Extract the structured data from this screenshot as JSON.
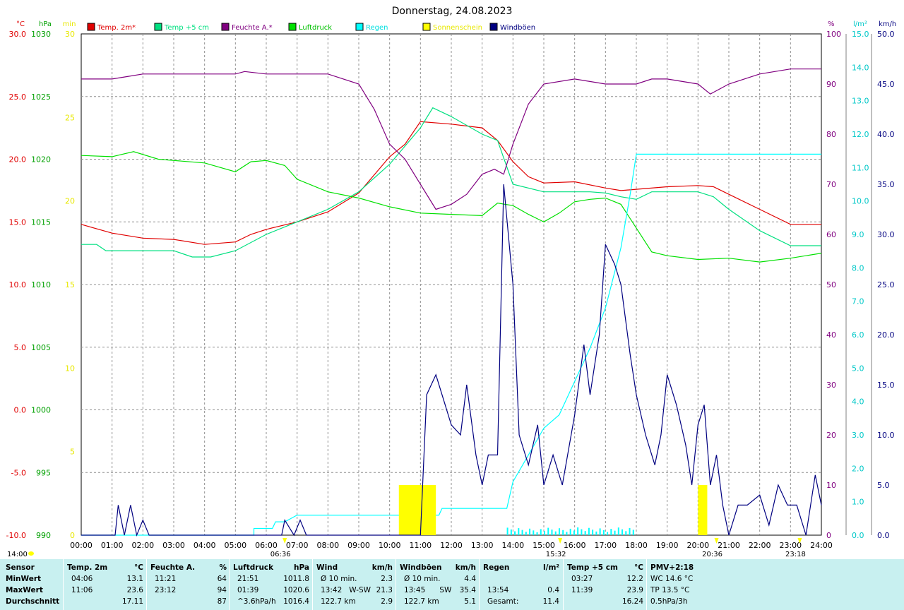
{
  "chart_data": {
    "type": "line",
    "title": "Donnerstag, 24.08.2023",
    "legend": [
      "Temp. 2m*",
      "Temp +5 cm",
      "Feuchte A.*",
      "Luftdruck",
      "Regen",
      "Sonnenschein",
      "Windböen"
    ],
    "legend_colors": [
      "#e00000",
      "#00e080",
      "#800080",
      "#00e000",
      "#00ffff",
      "#ffff00",
      "#000080"
    ],
    "axes": {
      "temp": {
        "unit": "°C",
        "range": [
          -10,
          30
        ],
        "ticks": [
          "30.0",
          "25.0",
          "20.0",
          "15.0",
          "10.0",
          "5.0",
          "0.0",
          "-5.0",
          "-10.0"
        ],
        "color": "#e00000"
      },
      "press": {
        "unit": "hPa",
        "range": [
          990,
          1030
        ],
        "ticks": [
          "1030",
          "1025",
          "1020",
          "1015",
          "1010",
          "1005",
          "1000",
          "995",
          "990"
        ],
        "color": "#00a000"
      },
      "min": {
        "unit": "min",
        "range": [
          0,
          30
        ],
        "ticks": [
          "30",
          "25",
          "20",
          "15",
          "10",
          "5",
          "0"
        ],
        "color": "#e8e800"
      },
      "hum": {
        "unit": "%",
        "range": [
          0,
          100
        ],
        "ticks": [
          "100",
          "90",
          "80",
          "70",
          "60",
          "50",
          "40",
          "30",
          "20",
          "10",
          "0"
        ],
        "color": "#800080"
      },
      "rain": {
        "unit": "l/m²",
        "range": [
          0,
          15
        ],
        "ticks": [
          "15.0",
          "14.0",
          "13.0",
          "12.0",
          "11.0",
          "10.0",
          "9.0",
          "8.0",
          "7.0",
          "6.0",
          "5.0",
          "4.0",
          "3.0",
          "2.0",
          "1.0",
          "0.0"
        ],
        "color": "#00c8c8"
      },
      "wind": {
        "unit": "km/h",
        "range": [
          0,
          50
        ],
        "ticks": [
          "50.0",
          "45.0",
          "40.0",
          "35.0",
          "30.0",
          "25.0",
          "20.0",
          "15.0",
          "10.0",
          "5.0",
          "0.0"
        ],
        "color": "#000080"
      }
    },
    "x_ticks": [
      "00:00",
      "01:00",
      "02:00",
      "03:00",
      "04:00",
      "05:00",
      "06:00",
      "07:00",
      "08:00",
      "09:00",
      "10:00",
      "11:00",
      "12:00",
      "13:00",
      "14:00",
      "15:00",
      "16:00",
      "17:00",
      "18:00",
      "19:00",
      "20:00",
      "21:00",
      "22:00",
      "23:00",
      "24:00"
    ],
    "markers": [
      {
        "time": "06:36",
        "hour": 6.6
      },
      {
        "time": "15:32",
        "hour": 15.53
      },
      {
        "time": "20:36",
        "hour": 20.6
      },
      {
        "time": "23:18",
        "hour": 23.3
      }
    ],
    "side_marker": "14:00",
    "series": [
      {
        "name": "Temp. 2m*",
        "axis": "temp",
        "points": [
          [
            0,
            14.8
          ],
          [
            1,
            14.1
          ],
          [
            2,
            13.7
          ],
          [
            3,
            13.6
          ],
          [
            4,
            13.2
          ],
          [
            5,
            13.4
          ],
          [
            5.5,
            14.0
          ],
          [
            6,
            14.4
          ],
          [
            7,
            15.0
          ],
          [
            8,
            15.8
          ],
          [
            9,
            17.3
          ],
          [
            10,
            20.2
          ],
          [
            10.5,
            21.2
          ],
          [
            11,
            23.0
          ],
          [
            12,
            22.8
          ],
          [
            13,
            22.5
          ],
          [
            13.5,
            21.5
          ],
          [
            14,
            19.8
          ],
          [
            14.5,
            18.6
          ],
          [
            15,
            18.1
          ],
          [
            16,
            18.2
          ],
          [
            17,
            17.7
          ],
          [
            17.5,
            17.5
          ],
          [
            18,
            17.6
          ],
          [
            19,
            17.8
          ],
          [
            20,
            17.9
          ],
          [
            20.5,
            17.8
          ],
          [
            21,
            17.2
          ],
          [
            22,
            16.0
          ],
          [
            23,
            14.8
          ],
          [
            24,
            14.8
          ]
        ]
      },
      {
        "name": "Temp +5 cm",
        "axis": "temp",
        "points": [
          [
            0,
            13.2
          ],
          [
            0.5,
            13.2
          ],
          [
            0.8,
            12.7
          ],
          [
            2,
            12.7
          ],
          [
            3,
            12.7
          ],
          [
            3.6,
            12.2
          ],
          [
            4.2,
            12.2
          ],
          [
            5,
            12.7
          ],
          [
            6,
            14.0
          ],
          [
            7,
            15.0
          ],
          [
            8,
            16.0
          ],
          [
            9,
            17.4
          ],
          [
            10,
            19.6
          ],
          [
            11,
            22.5
          ],
          [
            11.4,
            24.1
          ],
          [
            12,
            23.4
          ],
          [
            13,
            22.0
          ],
          [
            13.5,
            21.5
          ],
          [
            14,
            18.0
          ],
          [
            15,
            17.4
          ],
          [
            16,
            17.4
          ],
          [
            16.5,
            17.4
          ],
          [
            17,
            17.3
          ],
          [
            17.5,
            17.0
          ],
          [
            18,
            16.8
          ],
          [
            18.5,
            17.4
          ],
          [
            19,
            17.4
          ],
          [
            20,
            17.4
          ],
          [
            20.5,
            17.0
          ],
          [
            21,
            16.0
          ],
          [
            22,
            14.3
          ],
          [
            23,
            13.1
          ],
          [
            24,
            13.1
          ]
        ]
      },
      {
        "name": "Feuchte A.*",
        "axis": "hum",
        "points": [
          [
            0,
            91
          ],
          [
            1,
            91
          ],
          [
            1.5,
            91.5
          ],
          [
            2,
            92
          ],
          [
            3,
            92
          ],
          [
            4,
            92
          ],
          [
            5,
            92
          ],
          [
            5.3,
            92.5
          ],
          [
            6,
            92
          ],
          [
            7,
            92
          ],
          [
            8,
            92
          ],
          [
            9,
            90
          ],
          [
            9.5,
            85
          ],
          [
            10,
            78
          ],
          [
            10.5,
            75
          ],
          [
            11,
            70
          ],
          [
            11.5,
            65
          ],
          [
            12,
            66
          ],
          [
            12.5,
            68
          ],
          [
            13,
            72
          ],
          [
            13.4,
            73
          ],
          [
            13.7,
            72
          ],
          [
            14,
            78
          ],
          [
            14.5,
            86
          ],
          [
            15,
            90
          ],
          [
            16,
            91
          ],
          [
            17,
            90
          ],
          [
            18,
            90
          ],
          [
            18.5,
            91
          ],
          [
            19,
            91
          ],
          [
            20,
            90
          ],
          [
            20.4,
            88
          ],
          [
            21,
            90
          ],
          [
            22,
            92
          ],
          [
            23,
            93
          ],
          [
            24,
            93
          ]
        ]
      },
      {
        "name": "Luftdruck",
        "axis": "press",
        "points": [
          [
            0,
            1020.3
          ],
          [
            1,
            1020.2
          ],
          [
            1.7,
            1020.6
          ],
          [
            2.5,
            1020.0
          ],
          [
            3,
            1019.9
          ],
          [
            4,
            1019.7
          ],
          [
            5,
            1019.0
          ],
          [
            5.5,
            1019.8
          ],
          [
            6,
            1019.9
          ],
          [
            6.6,
            1019.5
          ],
          [
            7,
            1018.4
          ],
          [
            8,
            1017.4
          ],
          [
            9,
            1016.9
          ],
          [
            10,
            1016.2
          ],
          [
            11,
            1015.7
          ],
          [
            12,
            1015.6
          ],
          [
            13,
            1015.5
          ],
          [
            13.5,
            1016.5
          ],
          [
            14,
            1016.3
          ],
          [
            14.5,
            1015.6
          ],
          [
            15,
            1015.0
          ],
          [
            15.5,
            1015.7
          ],
          [
            16,
            1016.6
          ],
          [
            16.5,
            1016.8
          ],
          [
            17,
            1016.9
          ],
          [
            17.5,
            1016.4
          ],
          [
            18,
            1014.5
          ],
          [
            18.5,
            1012.6
          ],
          [
            19,
            1012.3
          ],
          [
            20,
            1012.0
          ],
          [
            21,
            1012.1
          ],
          [
            22,
            1011.8
          ],
          [
            23,
            1012.1
          ],
          [
            24,
            1012.5
          ]
        ]
      },
      {
        "name": "Regen",
        "axis": "rain",
        "points": [
          [
            0,
            0
          ],
          [
            5.6,
            0
          ],
          [
            5.6,
            0.2
          ],
          [
            6.2,
            0.2
          ],
          [
            6.3,
            0.4
          ],
          [
            6.6,
            0.4
          ],
          [
            7,
            0.6
          ],
          [
            11.6,
            0.6
          ],
          [
            11.7,
            0.8
          ],
          [
            13.8,
            0.8
          ],
          [
            14,
            1.6
          ],
          [
            14.5,
            2.4
          ],
          [
            15,
            3.2
          ],
          [
            15.5,
            3.6
          ],
          [
            16,
            4.6
          ],
          [
            16.5,
            5.6
          ],
          [
            17,
            6.8
          ],
          [
            17.5,
            8.6
          ],
          [
            17.8,
            10.2
          ],
          [
            18,
            11.4
          ],
          [
            24,
            11.4
          ]
        ]
      },
      {
        "name": "Sonnenschein",
        "axis": "min",
        "points": [
          [
            10.3,
            3
          ],
          [
            11.5,
            3
          ],
          [
            20.0,
            3
          ],
          [
            20.3,
            3
          ]
        ]
      },
      {
        "name": "Windböen",
        "axis": "wind",
        "points": [
          [
            0,
            0
          ],
          [
            1.1,
            0
          ],
          [
            1.2,
            3
          ],
          [
            1.4,
            0
          ],
          [
            1.6,
            3
          ],
          [
            1.8,
            0
          ],
          [
            2.0,
            1.5
          ],
          [
            2.2,
            0
          ],
          [
            5.0,
            0
          ],
          [
            6.5,
            0
          ],
          [
            6.6,
            1.5
          ],
          [
            6.9,
            0
          ],
          [
            7.1,
            1.5
          ],
          [
            7.3,
            0
          ],
          [
            11.0,
            0
          ],
          [
            11.2,
            14
          ],
          [
            11.5,
            16
          ],
          [
            11.8,
            13
          ],
          [
            12,
            11
          ],
          [
            12.3,
            10
          ],
          [
            12.5,
            15
          ],
          [
            12.8,
            8
          ],
          [
            13,
            5
          ],
          [
            13.2,
            8
          ],
          [
            13.5,
            8
          ],
          [
            13.7,
            35
          ],
          [
            14,
            25
          ],
          [
            14.2,
            10
          ],
          [
            14.5,
            7
          ],
          [
            14.8,
            11
          ],
          [
            15,
            5
          ],
          [
            15.3,
            8
          ],
          [
            15.6,
            5
          ],
          [
            16,
            12
          ],
          [
            16.3,
            19
          ],
          [
            16.5,
            14
          ],
          [
            16.8,
            20
          ],
          [
            17,
            29
          ],
          [
            17.3,
            27
          ],
          [
            17.5,
            25
          ],
          [
            17.8,
            18
          ],
          [
            18,
            14
          ],
          [
            18.3,
            10
          ],
          [
            18.6,
            7
          ],
          [
            18.8,
            10
          ],
          [
            19,
            16
          ],
          [
            19.3,
            13
          ],
          [
            19.6,
            9
          ],
          [
            19.8,
            5
          ],
          [
            20,
            11
          ],
          [
            20.2,
            13
          ],
          [
            20.4,
            5
          ],
          [
            20.6,
            8
          ],
          [
            20.8,
            3
          ],
          [
            21,
            0
          ],
          [
            21.3,
            3
          ],
          [
            21.6,
            3
          ],
          [
            22,
            4
          ],
          [
            22.3,
            1
          ],
          [
            22.6,
            5
          ],
          [
            22.9,
            3
          ],
          [
            23.2,
            3
          ],
          [
            23.5,
            0
          ],
          [
            23.8,
            6
          ],
          [
            24,
            3
          ]
        ]
      }
    ]
  },
  "stats": {
    "columns": [
      {
        "header": "Sensor",
        "unit": "",
        "rows": [
          "MinWert",
          "MaxWert",
          "Durchschnitt"
        ]
      },
      {
        "header": "Temp. 2m",
        "unit": "°C",
        "rows": [
          [
            "04:06",
            "13.1"
          ],
          [
            "11:06",
            "23.6"
          ],
          [
            "",
            "17.11"
          ]
        ]
      },
      {
        "header": "Feuchte A.",
        "unit": "%",
        "rows": [
          [
            "11:21",
            "64"
          ],
          [
            "23:12",
            "94"
          ],
          [
            "",
            "87"
          ]
        ]
      },
      {
        "header": "Luftdruck",
        "unit": "hPa",
        "rows": [
          [
            "21:51",
            "1011.8"
          ],
          [
            "01:39",
            "1020.6"
          ],
          [
            "^3.6hPa/h",
            "1016.4"
          ]
        ]
      },
      {
        "header": "Wind",
        "unit": "km/h",
        "rows": [
          [
            "Ø 10 min.",
            "2.3"
          ],
          [
            "13:42   W-SW",
            "21.3"
          ],
          [
            "122.7 km",
            "2.9"
          ]
        ]
      },
      {
        "header": "Windböen",
        "unit": "km/h",
        "rows": [
          [
            "Ø 10 min.",
            "4.4"
          ],
          [
            "13:45      SW",
            "35.4"
          ],
          [
            "122.7 km",
            "5.1"
          ]
        ]
      },
      {
        "header": "Regen",
        "unit": "l/m²",
        "rows": [
          [
            "",
            ""
          ],
          [
            "13:54",
            "0.4"
          ],
          [
            "Gesamt:",
            "11.4"
          ]
        ]
      },
      {
        "header": "Temp +5 cm",
        "unit": "°C",
        "rows": [
          [
            "03:27",
            "12.2"
          ],
          [
            "11:39",
            "23.9"
          ],
          [
            "",
            "16.24"
          ]
        ]
      },
      {
        "header": "PMV+2:18",
        "unit": "",
        "rows": [
          "WC 14.6 °C",
          "TP 13.5 °C",
          "0.5hPa/3h"
        ]
      }
    ]
  }
}
